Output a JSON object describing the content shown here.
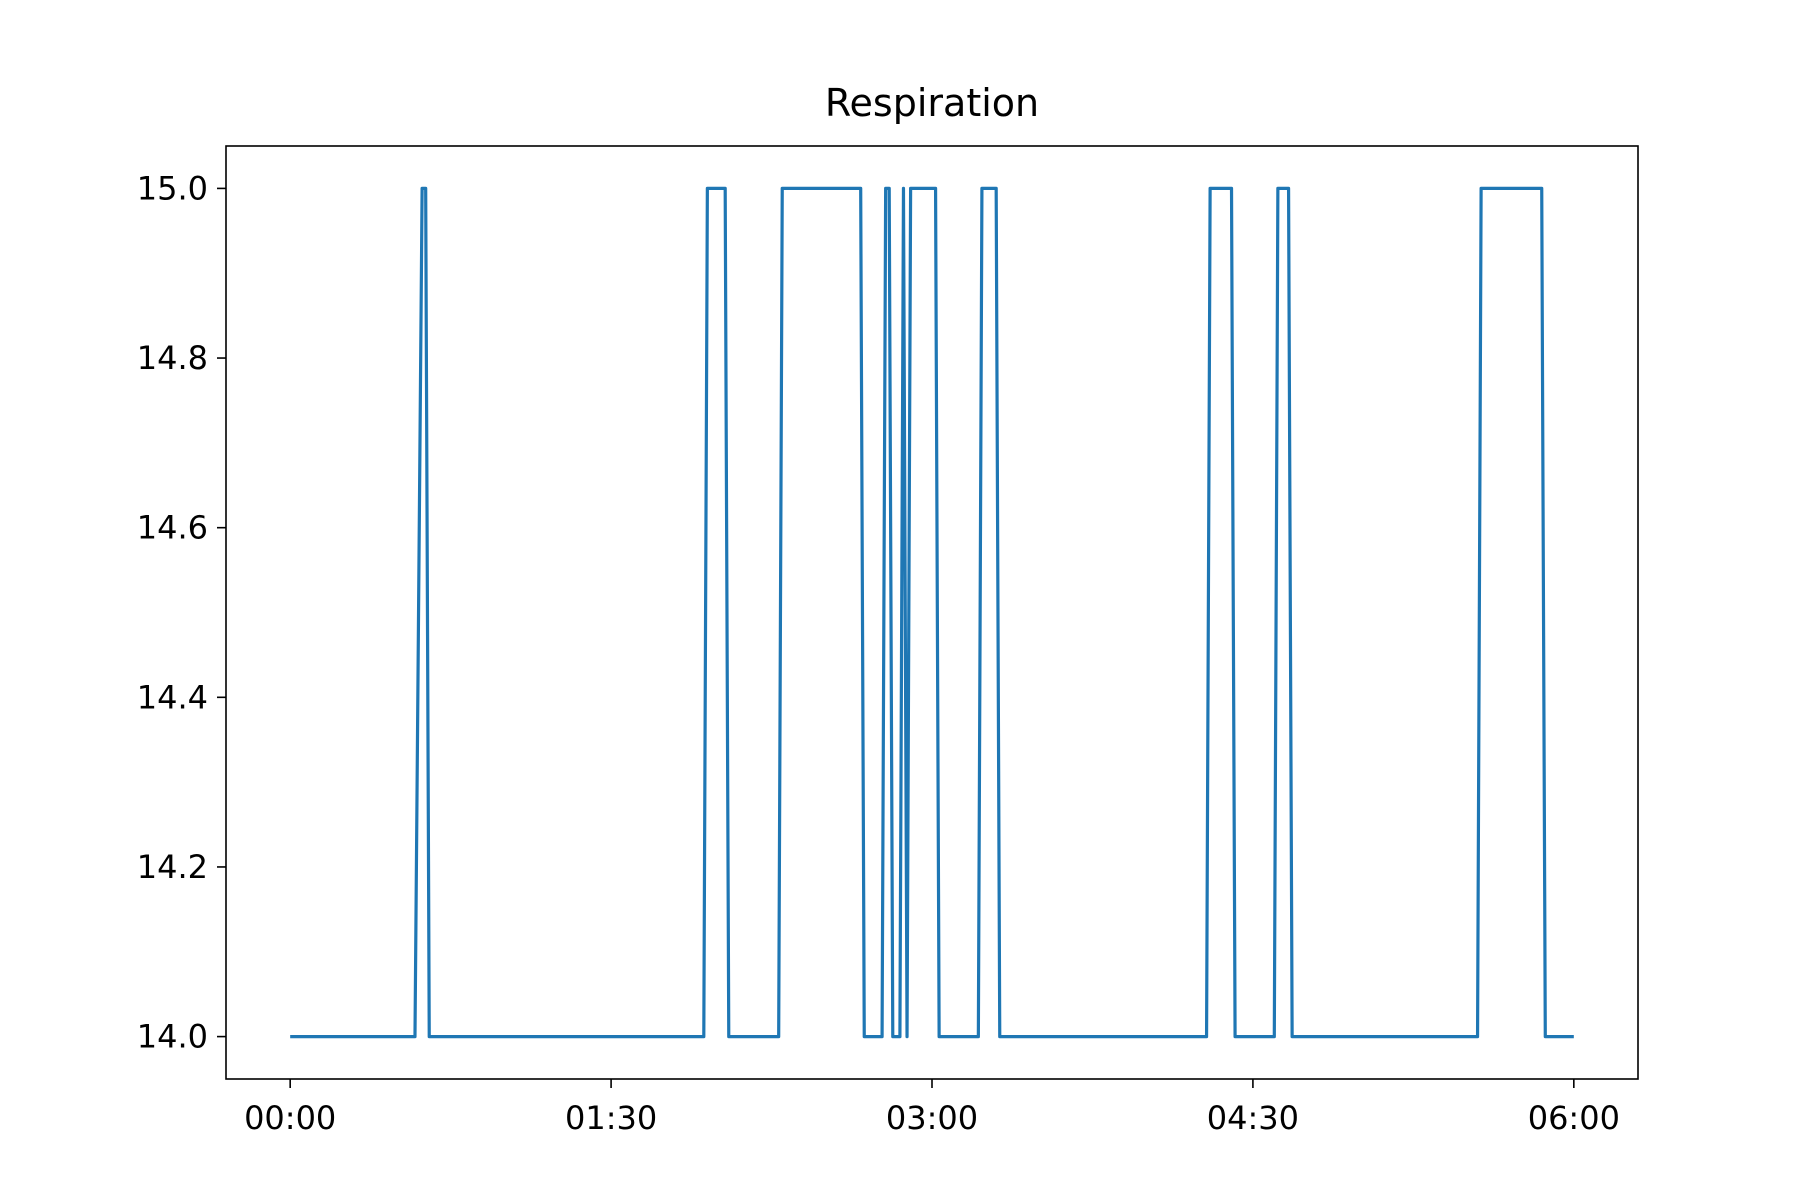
{
  "chart_data": {
    "type": "line",
    "title": "Respiration",
    "xlabel": "",
    "ylabel": "",
    "x_unit": "time HH:MM",
    "xlim": [
      "-00:18",
      "06:18"
    ],
    "ylim": [
      13.95,
      15.05
    ],
    "x_ticks": [
      "00:00",
      "01:30",
      "03:00",
      "04:30",
      "06:00"
    ],
    "y_ticks": [
      "14.0",
      "14.2",
      "14.4",
      "14.6",
      "14.8",
      "15.0"
    ],
    "grid": false,
    "legend": "none",
    "series": [
      {
        "color": "#1f77b4",
        "points": [
          [
            "00:00",
            14.0
          ],
          [
            "00:35",
            14.0
          ],
          [
            "00:37",
            15.0
          ],
          [
            "00:38",
            15.0
          ],
          [
            "00:39",
            14.0
          ],
          [
            "01:56",
            14.0
          ],
          [
            "01:57",
            15.0
          ],
          [
            "02:02",
            15.0
          ],
          [
            "02:03",
            14.0
          ],
          [
            "02:17",
            14.0
          ],
          [
            "02:18",
            15.0
          ],
          [
            "02:40",
            15.0
          ],
          [
            "02:41",
            14.0
          ],
          [
            "02:46",
            14.0
          ],
          [
            "02:47",
            15.0
          ],
          [
            "02:48",
            15.0
          ],
          [
            "02:49",
            14.0
          ],
          [
            "02:51",
            14.0
          ],
          [
            "02:52",
            15.0
          ],
          [
            "02:53",
            14.0
          ],
          [
            "02:54",
            15.0
          ],
          [
            "03:01",
            15.0
          ],
          [
            "03:02",
            14.0
          ],
          [
            "03:13",
            14.0
          ],
          [
            "03:14",
            15.0
          ],
          [
            "03:18",
            15.0
          ],
          [
            "03:19",
            14.0
          ],
          [
            "04:17",
            14.0
          ],
          [
            "04:18",
            15.0
          ],
          [
            "04:24",
            15.0
          ],
          [
            "04:25",
            14.0
          ],
          [
            "04:36",
            14.0
          ],
          [
            "04:37",
            15.0
          ],
          [
            "04:40",
            15.0
          ],
          [
            "04:41",
            14.0
          ],
          [
            "05:33",
            14.0
          ],
          [
            "05:34",
            15.0
          ],
          [
            "05:51",
            15.0
          ],
          [
            "05:52",
            14.0
          ],
          [
            "06:00",
            14.0
          ]
        ]
      }
    ]
  }
}
